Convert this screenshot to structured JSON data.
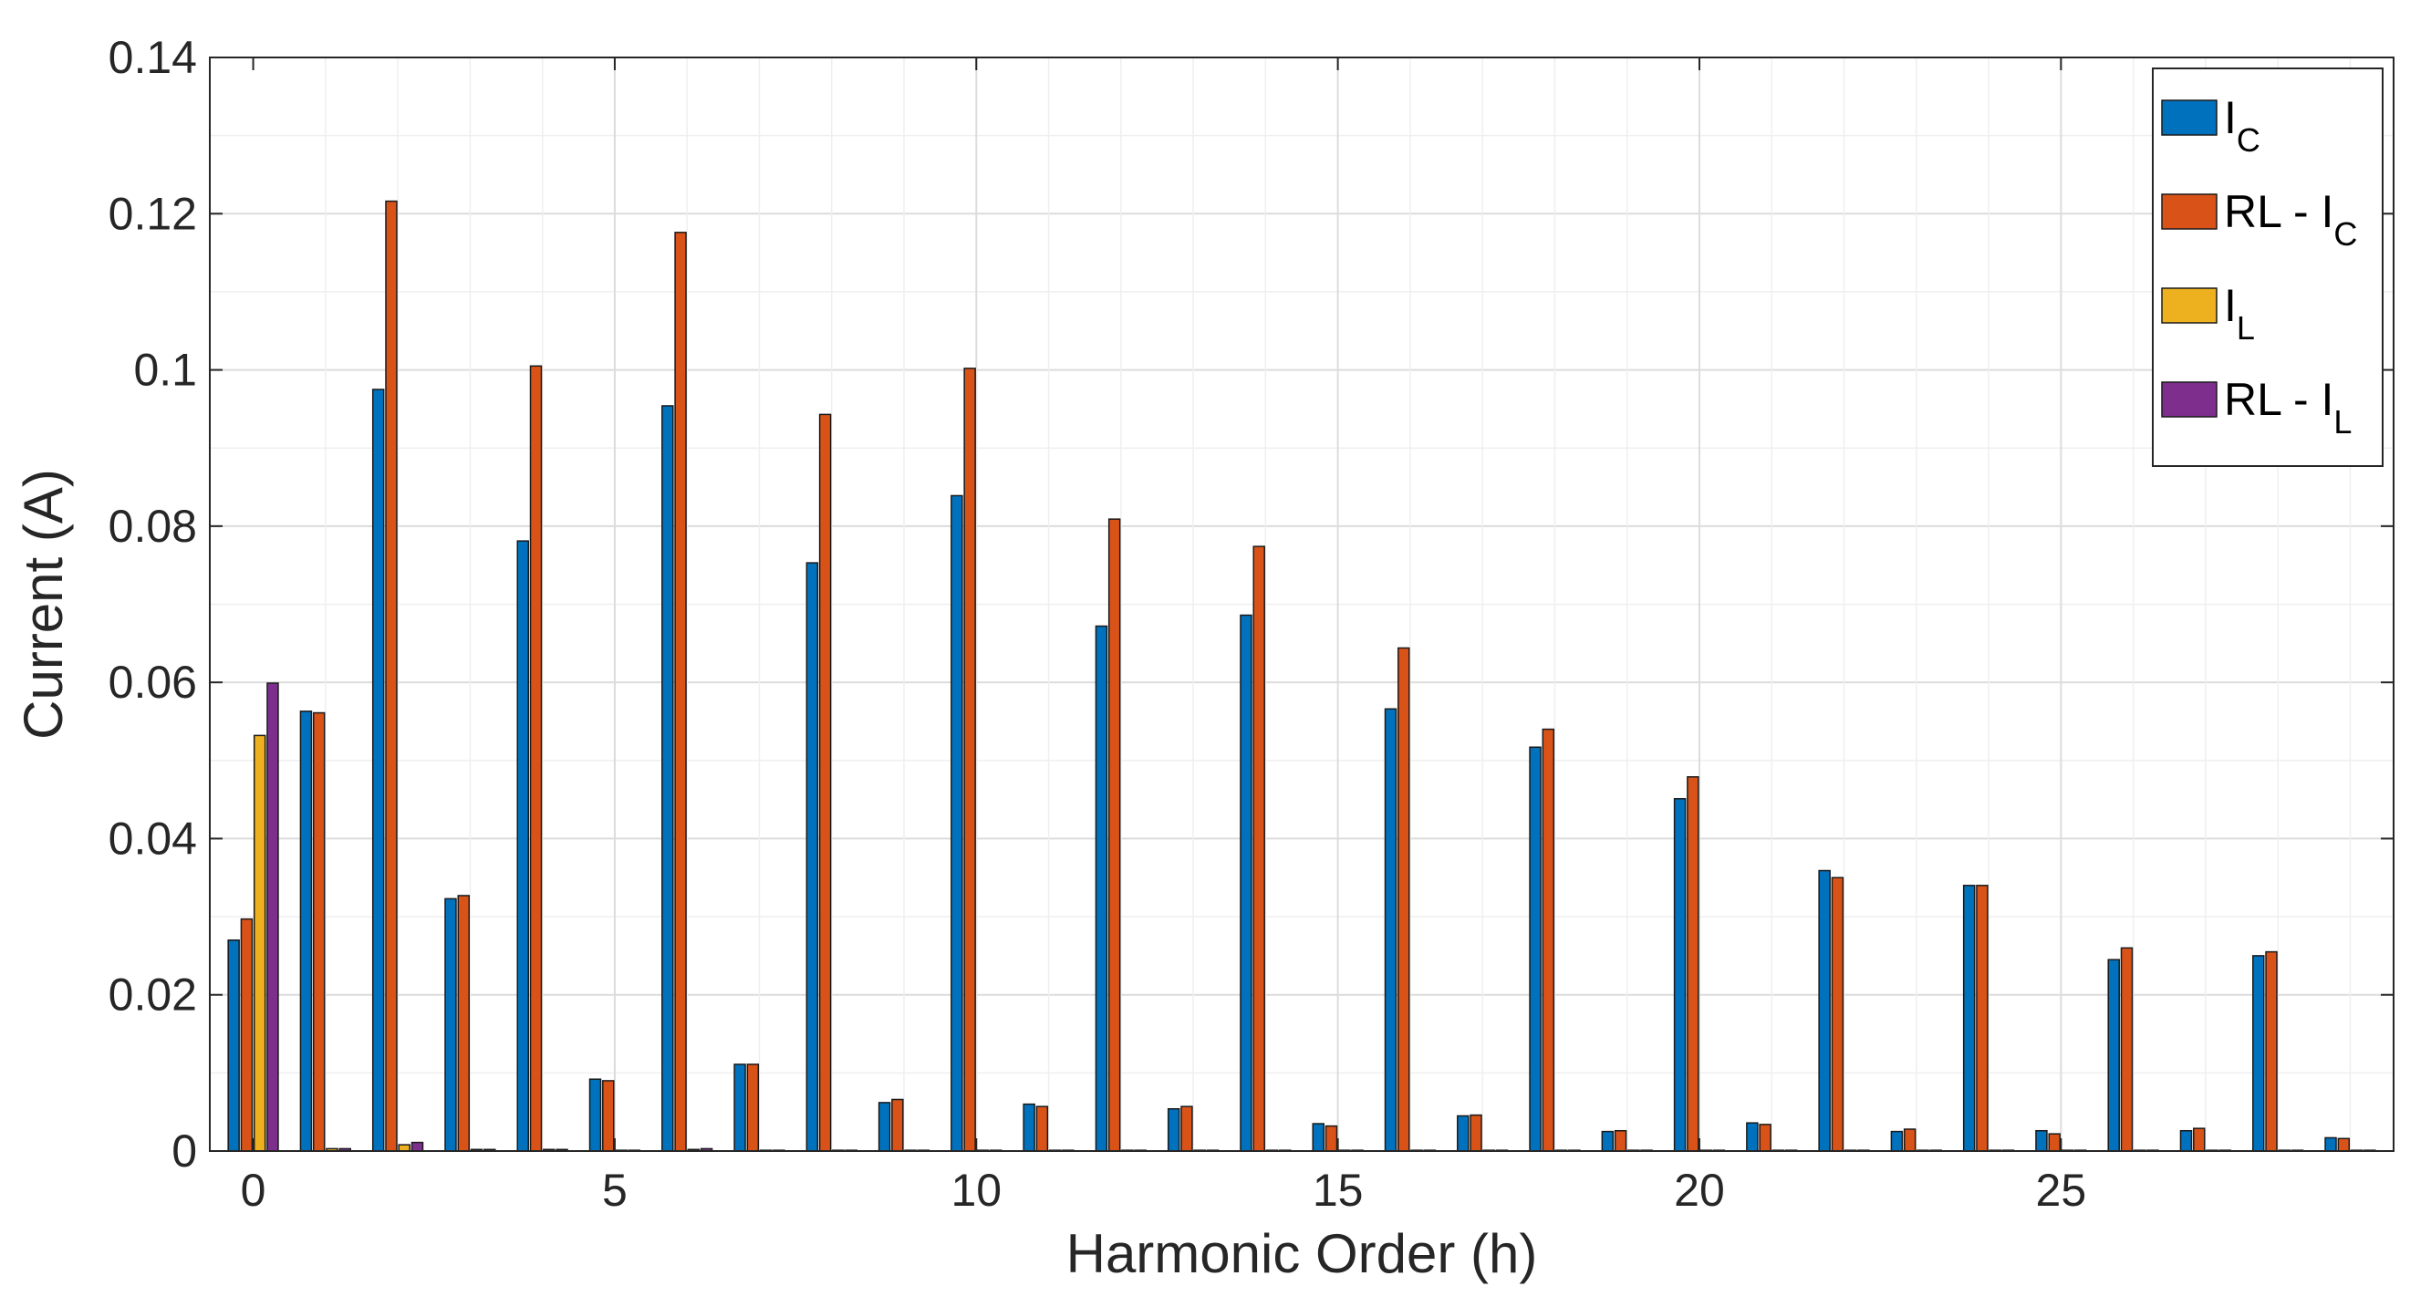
{
  "chart_data": {
    "type": "bar",
    "xlabel": "Harmonic Order (h)",
    "ylabel": "Current (A)",
    "xlim": [
      -0.6,
      29.6
    ],
    "ylim": [
      0,
      0.14
    ],
    "xticks": [
      0,
      5,
      10,
      15,
      20,
      25
    ],
    "xtick_labels": [
      "0",
      "5",
      "10",
      "15",
      "20",
      "25"
    ],
    "yticks": [
      0,
      0.02,
      0.04,
      0.06,
      0.08,
      0.1,
      0.12,
      0.14
    ],
    "ytick_labels": [
      "0",
      "0.02",
      "0.04",
      "0.06",
      "0.08",
      "0.1",
      "0.12",
      "0.14"
    ],
    "grid": true,
    "legend_position": "top-right",
    "x": [
      0,
      1,
      2,
      3,
      4,
      5,
      6,
      7,
      8,
      9,
      10,
      11,
      12,
      13,
      14,
      15,
      16,
      17,
      18,
      19,
      20,
      21,
      22,
      23,
      24,
      25,
      26,
      27,
      28,
      29
    ],
    "series": [
      {
        "name": "I_C",
        "legend_main": "I",
        "legend_sub": "C",
        "color": "#0072BD",
        "values": [
          0.027,
          0.0563,
          0.0975,
          0.0323,
          0.0781,
          0.0092,
          0.0954,
          0.0111,
          0.0753,
          0.0062,
          0.0839,
          0.006,
          0.0672,
          0.0054,
          0.0686,
          0.0035,
          0.0566,
          0.0045,
          0.0517,
          0.0025,
          0.0451,
          0.0036,
          0.0359,
          0.0025,
          0.034,
          0.0026,
          0.0245,
          0.0026,
          0.025,
          0.0017
        ]
      },
      {
        "name": "RL - I_C",
        "legend_main": "RL - I",
        "legend_sub": "C",
        "color": "#D95319",
        "values": [
          0.0297,
          0.0561,
          0.1216,
          0.0327,
          0.1005,
          0.009,
          0.1176,
          0.0111,
          0.0943,
          0.0066,
          0.1002,
          0.0057,
          0.0809,
          0.0057,
          0.0774,
          0.0032,
          0.0644,
          0.0046,
          0.054,
          0.0026,
          0.0479,
          0.0034,
          0.035,
          0.0028,
          0.034,
          0.0022,
          0.026,
          0.0029,
          0.0255,
          0.0016
        ]
      },
      {
        "name": "I_L",
        "legend_main": "I",
        "legend_sub": "L",
        "color": "#EDB120",
        "values": [
          0.0532,
          0.0003,
          0.0008,
          0.0002,
          0.0002,
          0.0001,
          0.0002,
          0.0001,
          0.0001,
          0.0001,
          0.0001,
          0.0001,
          0.0001,
          0.0001,
          0.0001,
          0.0001,
          0.0001,
          0.0001,
          0.0001,
          0.0001,
          0.0001,
          0.0001,
          0.0001,
          0.0001,
          0.0001,
          0.0001,
          0.0001,
          0.0001,
          0.0001,
          0.0001
        ]
      },
      {
        "name": "RL - I_L",
        "legend_main": "RL - I",
        "legend_sub": "L",
        "color": "#7E2F8E",
        "values": [
          0.0599,
          0.0003,
          0.0011,
          0.0002,
          0.0002,
          0.0001,
          0.0003,
          0.0001,
          0.0001,
          0.0001,
          0.0001,
          0.0001,
          0.0001,
          0.0001,
          0.0001,
          0.0001,
          0.0001,
          0.0001,
          0.0001,
          0.0001,
          0.0001,
          0.0001,
          0.0001,
          0.0001,
          0.0001,
          0.0001,
          0.0001,
          0.0001,
          0.0001,
          0.0001
        ]
      }
    ]
  }
}
